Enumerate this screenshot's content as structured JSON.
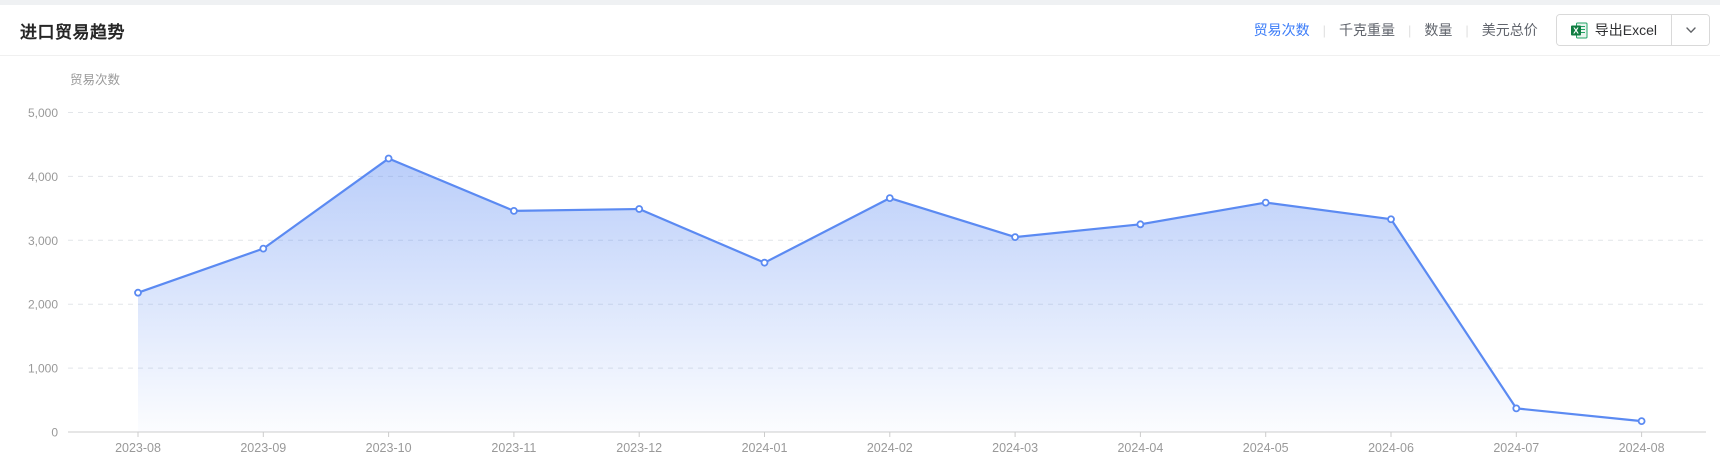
{
  "header": {
    "title": "进口贸易趋势",
    "metric_tabs": [
      {
        "label": "贸易次数",
        "active": true
      },
      {
        "label": "千克重量",
        "active": false
      },
      {
        "label": "数量",
        "active": false
      },
      {
        "label": "美元总价",
        "active": false
      }
    ],
    "export_button": {
      "label": "导出Excel",
      "icon": "excel-icon"
    },
    "dropdown_icon": "chevron-down-icon"
  },
  "chart_data": {
    "type": "area",
    "title": "",
    "ylabel": "贸易次数",
    "xlabel": "",
    "categories": [
      "2023-08",
      "2023-09",
      "2023-10",
      "2023-11",
      "2023-12",
      "2024-01",
      "2024-02",
      "2024-03",
      "2024-04",
      "2024-05",
      "2024-06",
      "2024-07",
      "2024-08"
    ],
    "series": [
      {
        "name": "贸易次数",
        "values": [
          2180,
          2870,
          4280,
          3460,
          3490,
          2650,
          3660,
          3050,
          3250,
          3590,
          3330,
          370,
          170
        ]
      }
    ],
    "ylim": [
      0,
      5000
    ],
    "ytick_interval": 1000,
    "ytick_labels": [
      "0",
      "1,000",
      "2,000",
      "3,000",
      "4,000",
      "5,000"
    ],
    "grid": "dashed-horizontal",
    "legend_position": "none",
    "line_color": "#5b8af2",
    "marker_style": "hollow-circle",
    "area_color_top": "rgba(91,138,242,0.42)",
    "area_color_bottom": "rgba(91,138,242,0.02)",
    "axis_text_color": "#999999",
    "axis_line_color": "#cccccc",
    "grid_line_color": "#e2e5e9"
  },
  "colors": {
    "active_tab": "#3b7cf8",
    "inactive_tab": "#60646c",
    "title_text": "#262626",
    "excel_green": "#107c41"
  }
}
